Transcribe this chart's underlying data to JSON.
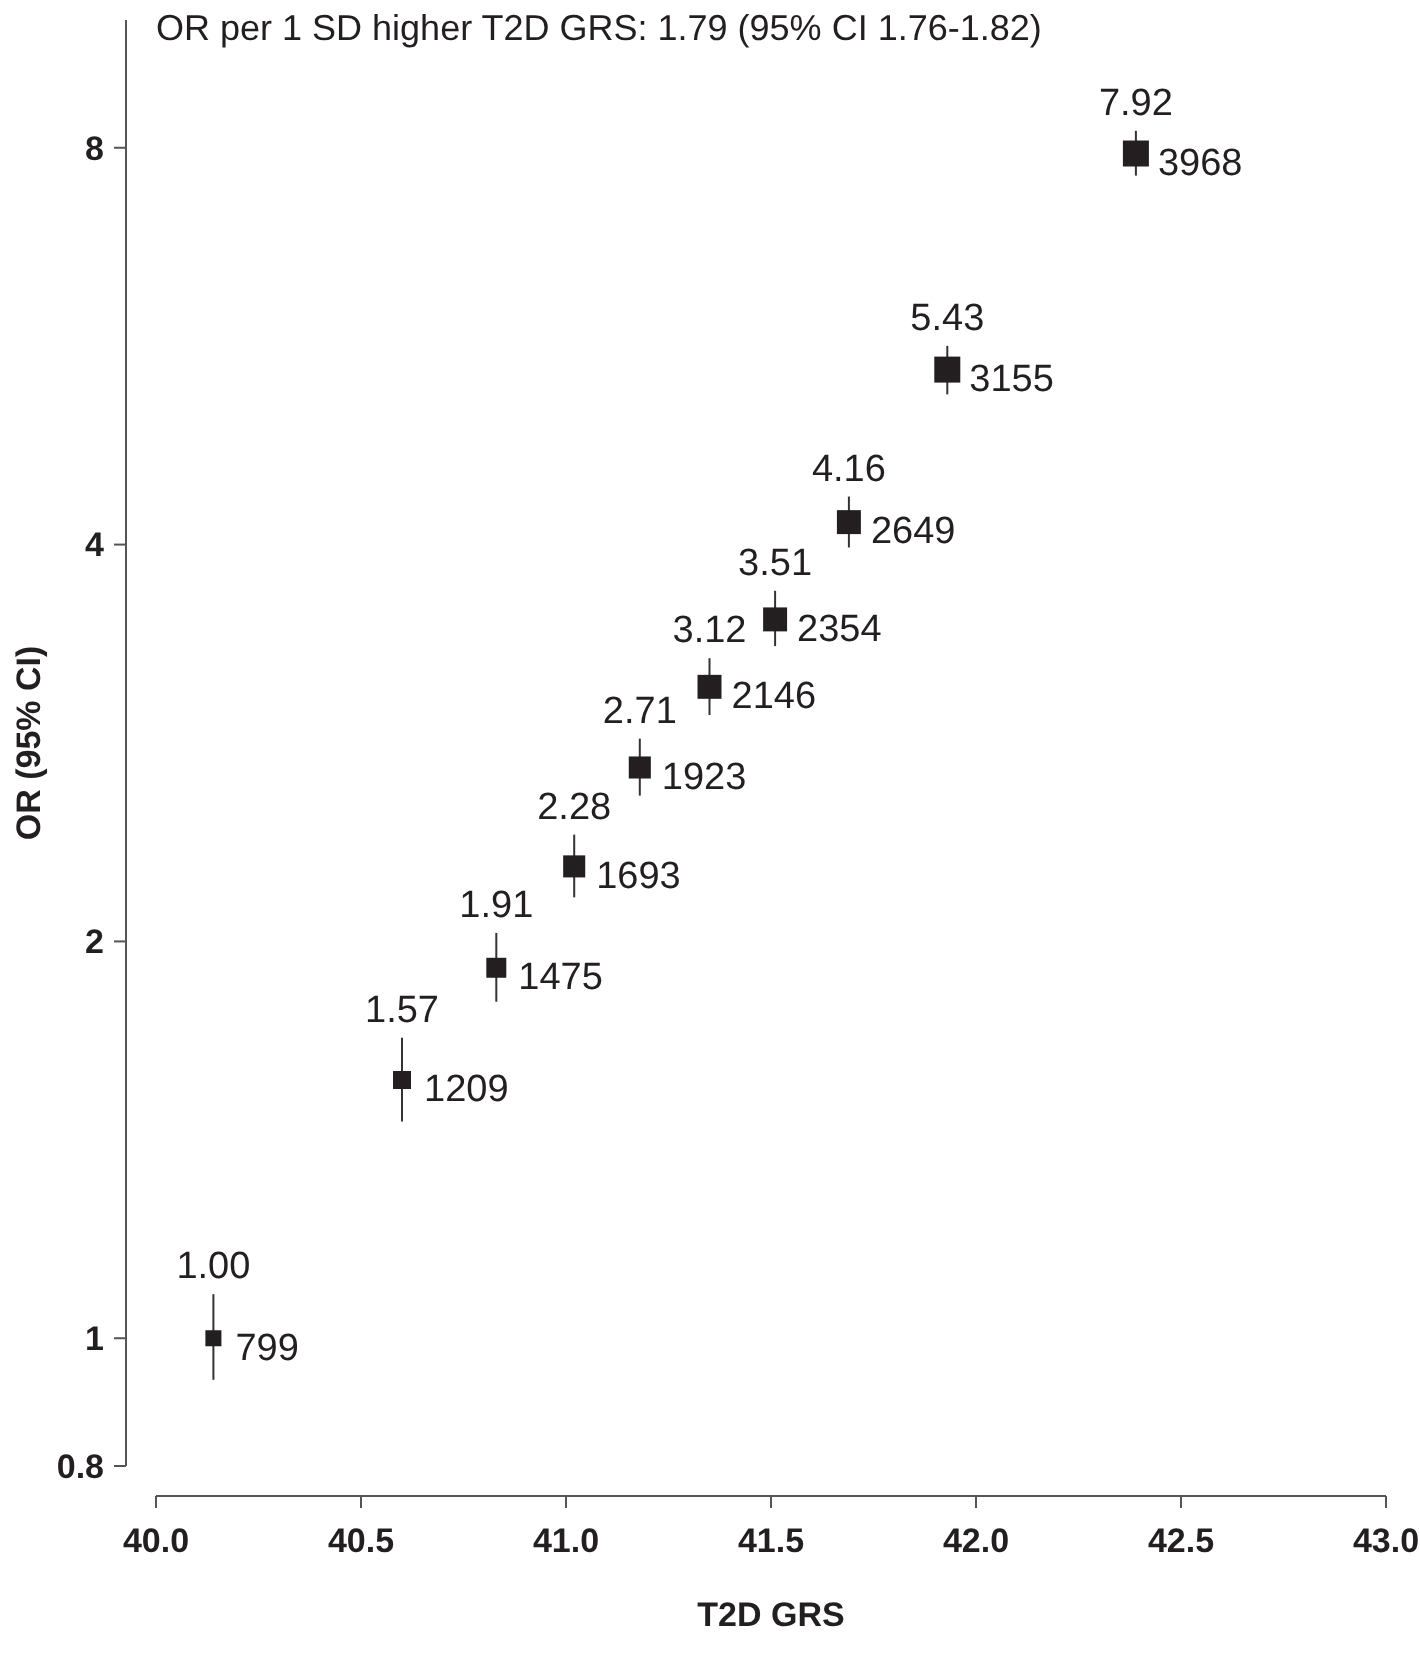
{
  "chart_data": {
    "type": "bubble",
    "title": "OR per 1 SD higher T2D GRS: 1.79 (95% CI 1.76-1.82)",
    "xlabel": "T2D GRS",
    "ylabel": "OR (95% CI)",
    "x": [
      40.14,
      40.6,
      40.83,
      41.02,
      41.18,
      41.35,
      41.51,
      41.69,
      41.93,
      42.39
    ],
    "values": [
      1.0,
      1.57,
      1.91,
      2.28,
      2.71,
      3.12,
      3.51,
      4.16,
      5.43,
      7.92
    ],
    "value_labels": [
      "1.00",
      "1.57",
      "1.91",
      "2.28",
      "2.71",
      "3.12",
      "3.51",
      "4.16",
      "5.43",
      "7.92"
    ],
    "errors": [
      [
        0.93,
        1.08
      ],
      [
        1.46,
        1.69
      ],
      [
        1.8,
        2.03
      ],
      [
        2.16,
        2.41
      ],
      [
        2.58,
        2.85
      ],
      [
        2.97,
        3.28
      ],
      [
        3.35,
        3.69
      ],
      [
        3.98,
        4.35
      ],
      [
        5.2,
        5.66
      ],
      [
        7.62,
        8.24
      ]
    ],
    "sizes": [
      0.38,
      0.48,
      0.59,
      0.72,
      0.72,
      0.85,
      0.85,
      0.85,
      1,
      1
    ],
    "color": "#231f20",
    "marker": "square",
    "log": "y",
    "xlim": [
      40,
      43
    ],
    "xticks": [
      {
        "value": 40,
        "label": "40.0"
      },
      {
        "value": 40.5,
        "label": "40.5"
      },
      {
        "value": 41,
        "label": "41.0"
      },
      {
        "value": 41.5,
        "label": "41.5"
      },
      {
        "value": 42,
        "label": "42.0"
      },
      {
        "value": 42.5,
        "label": "42.5"
      },
      {
        "value": 43,
        "label": "43.0"
      }
    ],
    "ylim": [
      0.8,
      10
    ],
    "yticks": [
      0.8,
      1,
      2,
      4,
      8
    ],
    "annotations": [
      {
        "text": "799",
        "x": 40.14,
        "y": 1.0
      },
      {
        "text": "1209",
        "x": 40.6,
        "y": 1.57
      },
      {
        "text": "1475",
        "x": 40.83,
        "y": 1.91
      },
      {
        "text": "1693",
        "x": 41.02,
        "y": 2.28
      },
      {
        "text": "1923",
        "x": 41.18,
        "y": 2.71
      },
      {
        "text": "2146",
        "x": 41.35,
        "y": 3.12
      },
      {
        "text": "2354",
        "x": 41.51,
        "y": 3.51
      },
      {
        "text": "2649",
        "x": 41.69,
        "y": 4.16
      },
      {
        "text": "3155",
        "x": 41.93,
        "y": 5.43
      },
      {
        "text": "3968",
        "x": 42.39,
        "y": 7.92
      }
    ]
  }
}
